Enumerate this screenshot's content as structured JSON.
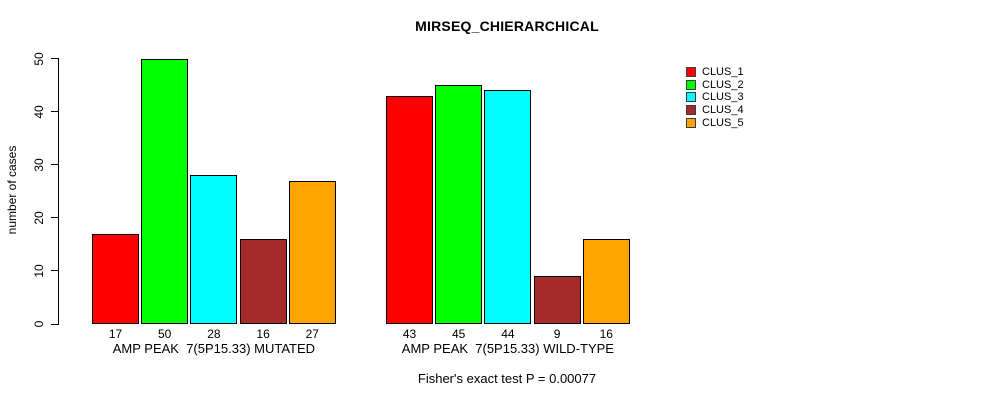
{
  "chart_data": {
    "type": "bar",
    "title": "MIRSEQ_CHIERARCHICAL",
    "ylabel": "number of cases",
    "xlabel": "",
    "annotation": "Fisher's exact test P = 0.00077",
    "categories": [
      "AMP PEAK  7(5P15.33) MUTATED",
      "AMP PEAK  7(5P15.33) WILD-TYPE"
    ],
    "series": [
      {
        "name": "CLUS_1",
        "color": "#FF0000",
        "values": [
          17,
          43
        ]
      },
      {
        "name": "CLUS_2",
        "color": "#00FF00",
        "values": [
          50,
          45
        ]
      },
      {
        "name": "CLUS_3",
        "color": "#00FFFF",
        "values": [
          28,
          44
        ]
      },
      {
        "name": "CLUS_4",
        "color": "#A52A2A",
        "values": [
          16,
          9
        ]
      },
      {
        "name": "CLUS_5",
        "color": "#FFA500",
        "values": [
          27,
          16
        ]
      }
    ],
    "yticks": [
      0,
      10,
      20,
      30,
      40,
      50
    ],
    "ylim": [
      0,
      50
    ],
    "bar_value_labels_shown": true,
    "grid": false,
    "legend_position": "right",
    "axis_color": "#000000",
    "bar_border_color": "#000000",
    "background_color": "#FFFFFF"
  }
}
